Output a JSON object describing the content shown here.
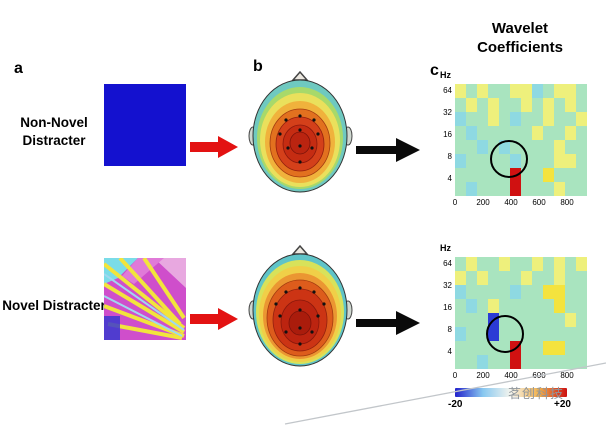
{
  "title": "Wavelet Coefficients",
  "panel_labels": {
    "a": "a",
    "b": "b",
    "c": "c"
  },
  "rows": [
    {
      "label": "Non-Novel Distracter"
    },
    {
      "label": "Novel Distracter"
    }
  ],
  "stimuli": {
    "non_novel_color": "#1411cf"
  },
  "axes": {
    "hz_label": "Hz",
    "y_ticks": [
      "64",
      "32",
      "16",
      "8",
      "4"
    ],
    "x_ticks": [
      "0",
      "200",
      "400",
      "600",
      "800"
    ]
  },
  "spectrograms": {
    "palette": {
      "g": "#a9e4bf",
      "y": "#eef07c",
      "Y": "#f4e33e",
      "c": "#8ed9e2",
      "b": "#2b3bd5",
      "R": "#d01111"
    },
    "non_novel": {
      "grid": [
        "ygyggyycgyyg",
        "gygyggygygyg",
        "cggygcggyggy",
        "gcgggggyggyg",
        "ggcgcggggygg",
        "cggggcgggyyg",
        "gggggRggYggg",
        "gcgggRgggygg"
      ]
    },
    "novel": {
      "grid": [
        "gyggyggygygy",
        "ygygggyggygg",
        "cggggcggYYgg",
        "gcgygggggYgg",
        "gggbggggggyg",
        "cggbgggggggg",
        "gggggRggYYgg",
        "ggcggRgggggg"
      ]
    }
  },
  "colorbar": {
    "min_label": "-20",
    "max_label": "+20",
    "gradient": [
      "#2222cc",
      "#88c8f0",
      "#f5f5ee",
      "#f2b04a",
      "#cc1111"
    ]
  },
  "watermark": {
    "text": "茗创科技"
  }
}
